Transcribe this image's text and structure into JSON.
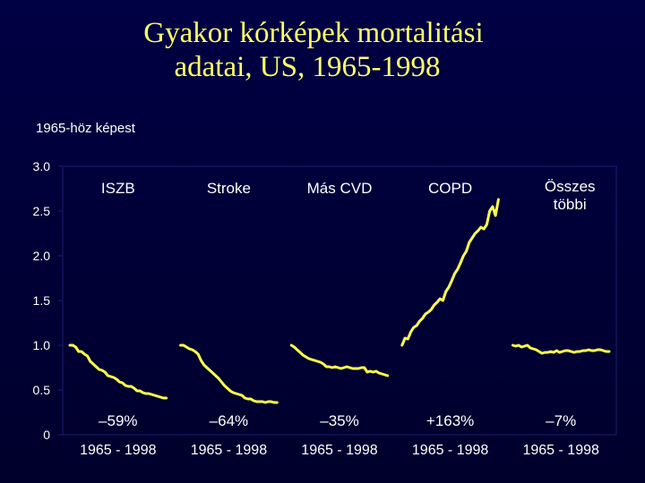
{
  "title": {
    "line1": "Gyakor kórképek mortalitási",
    "line2": "adatai, US, 1965-1998"
  },
  "ylabel": "1965-höz képest",
  "colors": {
    "background": "#000040",
    "title": "#ffff66",
    "line": "#ffff4d",
    "text": "#ffffff",
    "grid": "#1e1e74"
  },
  "chart_data": {
    "type": "line",
    "title": "Gyakor kórképek mortalitási adatai, US, 1965-1998",
    "ylabel": "1965-höz képest",
    "ylim": [
      0,
      3.0
    ],
    "yticks": [
      "0",
      "0.5",
      "1.0",
      "1.5",
      "2.0",
      "2.5",
      "3.0"
    ],
    "xlim": [
      1965,
      1998
    ],
    "grid": false,
    "panels": [
      {
        "name": "ISZB",
        "range_label": "1965 - 1998",
        "change_label": "–59%",
        "x": [
          1965,
          1966,
          1967,
          1968,
          1969,
          1970,
          1971,
          1972,
          1973,
          1974,
          1975,
          1976,
          1977,
          1978,
          1979,
          1980,
          1981,
          1982,
          1983,
          1984,
          1985,
          1986,
          1987,
          1988,
          1989,
          1990,
          1991,
          1992,
          1993,
          1994,
          1995,
          1996,
          1997,
          1998
        ],
        "y": [
          1.0,
          1.0,
          0.98,
          0.93,
          0.93,
          0.9,
          0.88,
          0.82,
          0.79,
          0.76,
          0.73,
          0.72,
          0.7,
          0.66,
          0.65,
          0.64,
          0.62,
          0.59,
          0.58,
          0.55,
          0.54,
          0.54,
          0.52,
          0.49,
          0.49,
          0.47,
          0.46,
          0.46,
          0.45,
          0.44,
          0.43,
          0.42,
          0.41,
          0.41
        ]
      },
      {
        "name": "Stroke",
        "range_label": "1965 - 1998",
        "change_label": "–64%",
        "x": [
          1965,
          1966,
          1967,
          1968,
          1969,
          1970,
          1971,
          1972,
          1973,
          1974,
          1975,
          1976,
          1977,
          1978,
          1979,
          1980,
          1981,
          1982,
          1983,
          1984,
          1985,
          1986,
          1987,
          1988,
          1989,
          1990,
          1991,
          1992,
          1993,
          1994,
          1995,
          1996,
          1997,
          1998
        ],
        "y": [
          1.0,
          1.0,
          0.98,
          0.96,
          0.95,
          0.93,
          0.9,
          0.83,
          0.78,
          0.75,
          0.72,
          0.69,
          0.66,
          0.63,
          0.59,
          0.55,
          0.52,
          0.49,
          0.47,
          0.46,
          0.45,
          0.44,
          0.41,
          0.4,
          0.4,
          0.38,
          0.37,
          0.37,
          0.37,
          0.36,
          0.37,
          0.37,
          0.36,
          0.36
        ]
      },
      {
        "name": "Más CVD",
        "range_label": "1965 - 1998",
        "change_label": "–35%",
        "x": [
          1965,
          1966,
          1967,
          1968,
          1969,
          1970,
          1971,
          1972,
          1973,
          1974,
          1975,
          1976,
          1977,
          1978,
          1979,
          1980,
          1981,
          1982,
          1983,
          1984,
          1985,
          1986,
          1987,
          1988,
          1989,
          1990,
          1991,
          1992,
          1993,
          1994,
          1995,
          1996,
          1997,
          1998
        ],
        "y": [
          1.0,
          0.98,
          0.95,
          0.92,
          0.89,
          0.87,
          0.85,
          0.84,
          0.83,
          0.82,
          0.81,
          0.79,
          0.76,
          0.76,
          0.75,
          0.76,
          0.75,
          0.74,
          0.75,
          0.76,
          0.75,
          0.74,
          0.74,
          0.74,
          0.75,
          0.75,
          0.7,
          0.71,
          0.7,
          0.71,
          0.69,
          0.68,
          0.67,
          0.66
        ]
      },
      {
        "name": "COPD",
        "range_label": "1965 - 1998",
        "change_label": "+163%",
        "x": [
          1965,
          1966,
          1967,
          1968,
          1969,
          1970,
          1971,
          1972,
          1973,
          1974,
          1975,
          1976,
          1977,
          1978,
          1979,
          1980,
          1981,
          1982,
          1983,
          1984,
          1985,
          1986,
          1987,
          1988,
          1989,
          1990,
          1991,
          1992,
          1993,
          1994,
          1995,
          1996,
          1997,
          1998
        ],
        "y": [
          1.0,
          1.08,
          1.07,
          1.15,
          1.2,
          1.22,
          1.27,
          1.3,
          1.35,
          1.37,
          1.4,
          1.45,
          1.48,
          1.52,
          1.5,
          1.6,
          1.65,
          1.72,
          1.8,
          1.85,
          1.92,
          2.0,
          2.05,
          2.15,
          2.2,
          2.25,
          2.28,
          2.32,
          2.3,
          2.35,
          2.5,
          2.55,
          2.45,
          2.63
        ]
      },
      {
        "name": "Összes többi",
        "name_lines": [
          "Összes",
          "többi"
        ],
        "range_label": "1965 - 1998",
        "change_label": "–7%",
        "x": [
          1965,
          1966,
          1967,
          1968,
          1969,
          1970,
          1971,
          1972,
          1973,
          1974,
          1975,
          1976,
          1977,
          1978,
          1979,
          1980,
          1981,
          1982,
          1983,
          1984,
          1985,
          1986,
          1987,
          1988,
          1989,
          1990,
          1991,
          1992,
          1993,
          1994,
          1995,
          1996,
          1997,
          1998
        ],
        "y": [
          1.0,
          0.99,
          1.0,
          0.98,
          0.99,
          1.0,
          0.97,
          0.96,
          0.95,
          0.93,
          0.91,
          0.92,
          0.92,
          0.93,
          0.92,
          0.94,
          0.92,
          0.93,
          0.94,
          0.94,
          0.93,
          0.92,
          0.93,
          0.93,
          0.94,
          0.94,
          0.95,
          0.94,
          0.94,
          0.95,
          0.95,
          0.94,
          0.93,
          0.93
        ]
      }
    ]
  }
}
